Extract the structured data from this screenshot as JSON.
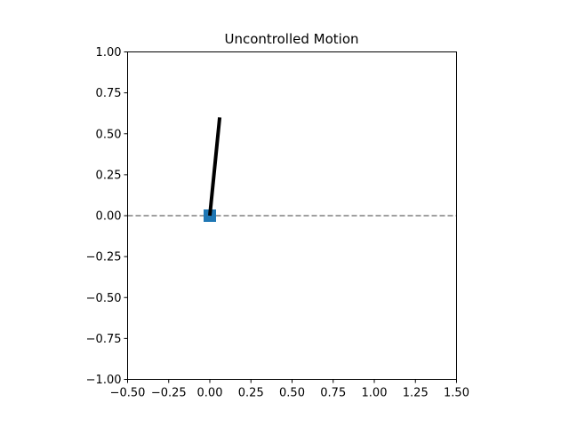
{
  "chart_data": {
    "type": "line",
    "title": "Uncontrolled Motion",
    "xlabel": "",
    "ylabel": "",
    "xlim": [
      -0.5,
      1.5
    ],
    "ylim": [
      -1.0,
      1.0
    ],
    "xticks": [
      -0.5,
      -0.25,
      0.0,
      0.25,
      0.5,
      0.75,
      1.0,
      1.25,
      1.5
    ],
    "xtick_labels": [
      "−0.50",
      "−0.25",
      "0.00",
      "0.25",
      "0.50",
      "0.75",
      "1.00",
      "1.25",
      "1.50"
    ],
    "yticks": [
      -1.0,
      -0.75,
      -0.5,
      -0.25,
      0.0,
      0.25,
      0.5,
      0.75,
      1.0
    ],
    "ytick_labels": [
      "−1.00",
      "−0.75",
      "−0.50",
      "−0.25",
      "0.00",
      "0.25",
      "0.50",
      "0.75",
      "1.00"
    ],
    "grid": false,
    "series": [
      {
        "kind": "hline",
        "y": 0.0,
        "style": "dashed",
        "color": "#808080"
      },
      {
        "kind": "marker",
        "x": [
          0.0
        ],
        "y": [
          0.0
        ],
        "marker": "square",
        "color": "#1f77b4"
      },
      {
        "kind": "line",
        "x": [
          0.0,
          0.06
        ],
        "y": [
          0.0,
          0.6
        ],
        "color": "#000000"
      }
    ]
  }
}
